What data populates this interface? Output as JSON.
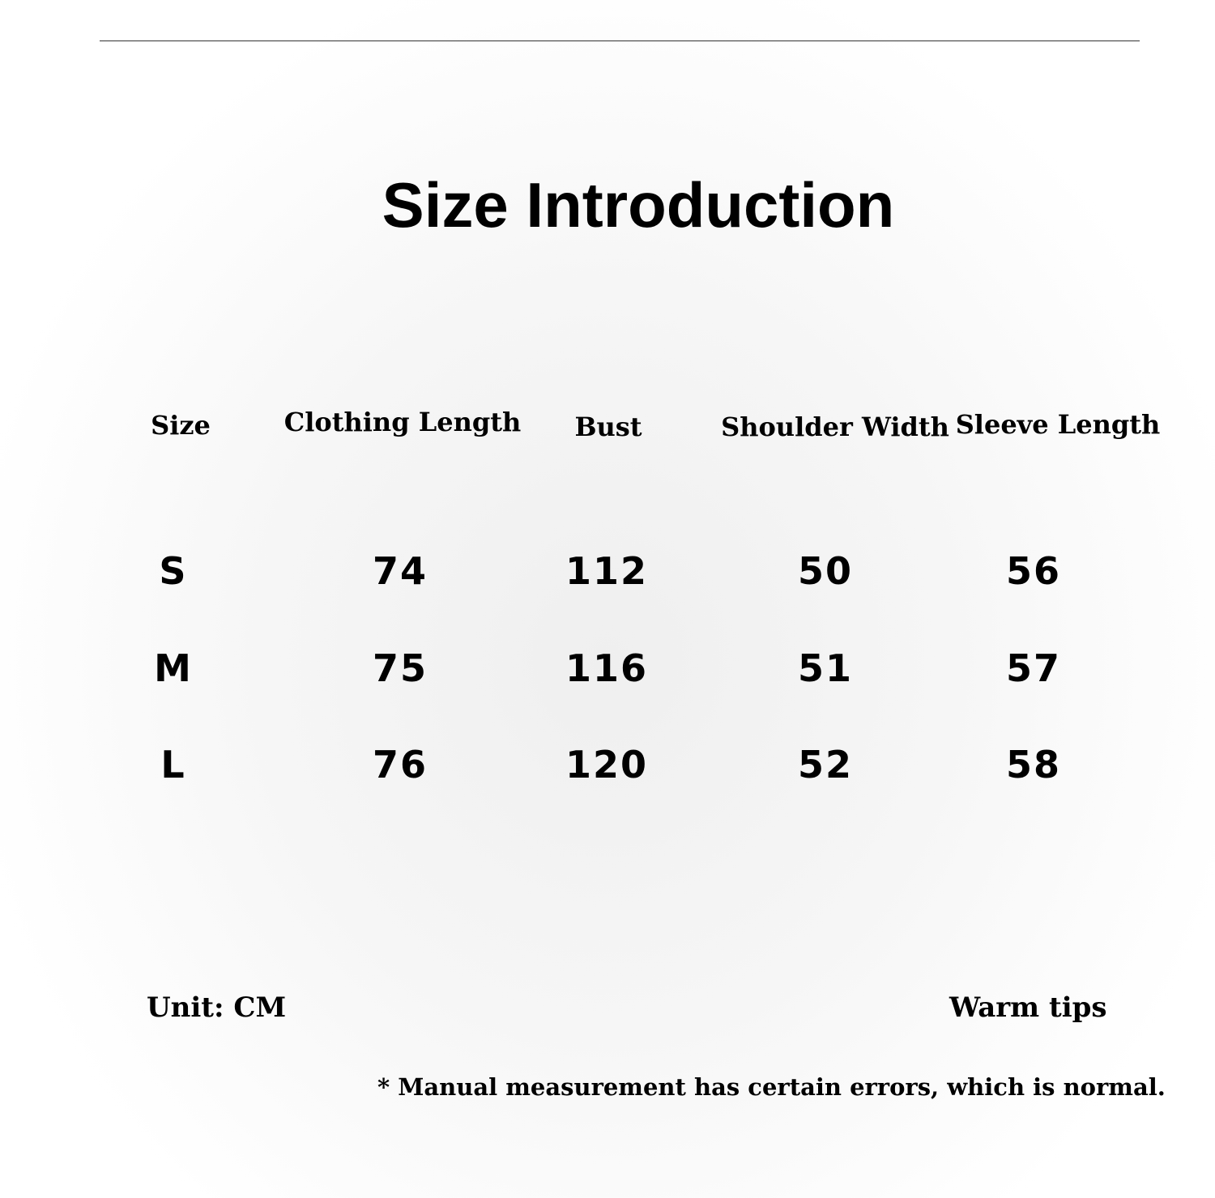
{
  "title": "Size Introduction",
  "table": {
    "headers": [
      "Size",
      "Clothing Length",
      "Bust",
      "Shoulder Width",
      "Sleeve Length"
    ],
    "rows": [
      [
        "S",
        "74",
        "112",
        "50",
        "56"
      ],
      [
        "M",
        "75",
        "116",
        "51",
        "57"
      ],
      [
        "L",
        "76",
        "120",
        "52",
        "58"
      ]
    ]
  },
  "footer": {
    "unit": "Unit: CM",
    "warm_tips": "Warm tips",
    "disclaimer": "* Manual measurement has certain errors, which is normal."
  }
}
